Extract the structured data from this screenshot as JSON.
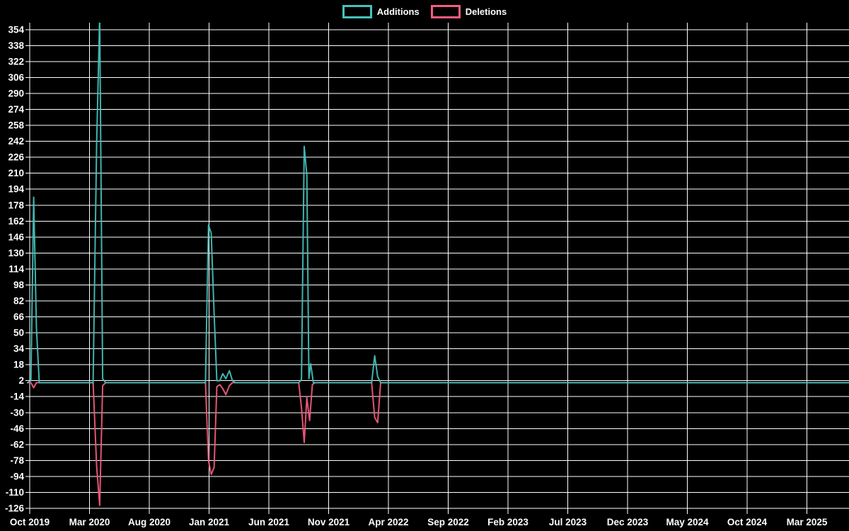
{
  "chart_data": {
    "type": "line",
    "title": "",
    "background": "#000000",
    "grid": true,
    "legend": {
      "position": "top-center",
      "items": [
        "Additions",
        "Deletions"
      ]
    },
    "x_axis": {
      "label": "",
      "tick_labels": [
        "Oct 2019",
        "Mar 2020",
        "Aug 2020",
        "Jan 2021",
        "Jun 2021",
        "Nov 2021",
        "Apr 2022",
        "Sep 2022",
        "Feb 2023",
        "Jul 2023",
        "Dec 2023",
        "May 2024",
        "Oct 2024",
        "Mar 2025"
      ],
      "months_between_ticks": 5,
      "x_unit": "months since Oct 2019",
      "data_start_month": -0.18,
      "data_end_month": 68.5
    },
    "y_axis": {
      "label": "",
      "tick_min": -126,
      "tick_max": 354,
      "tick_step": 16,
      "range_min": -126,
      "range_max": 361
    },
    "series": [
      {
        "name": "Additions",
        "color": "#46c2bd",
        "points": [
          [
            -0.18,
            0
          ],
          [
            0.1,
            2
          ],
          [
            0.33,
            186
          ],
          [
            0.56,
            55
          ],
          [
            0.8,
            0
          ],
          [
            5.3,
            0
          ],
          [
            5.6,
            240
          ],
          [
            5.85,
            368
          ],
          [
            6.1,
            4
          ],
          [
            6.35,
            0
          ],
          [
            14.7,
            0
          ],
          [
            14.95,
            158
          ],
          [
            15.18,
            150
          ],
          [
            15.42,
            70
          ],
          [
            15.65,
            2
          ],
          [
            15.9,
            2
          ],
          [
            16.15,
            9
          ],
          [
            16.4,
            4
          ],
          [
            16.7,
            12
          ],
          [
            16.95,
            2
          ],
          [
            17.2,
            0
          ],
          [
            22.5,
            0
          ],
          [
            22.73,
            3
          ],
          [
            22.96,
            237
          ],
          [
            23.18,
            208
          ],
          [
            23.35,
            4
          ],
          [
            23.5,
            19
          ],
          [
            23.72,
            0
          ],
          [
            28.6,
            0
          ],
          [
            28.85,
            27
          ],
          [
            29.1,
            6
          ],
          [
            29.35,
            0
          ],
          [
            68.5,
            0
          ]
        ]
      },
      {
        "name": "Deletions",
        "color": "#f75c7f",
        "points": [
          [
            -0.18,
            0
          ],
          [
            0.1,
            0
          ],
          [
            0.33,
            -5
          ],
          [
            0.56,
            0
          ],
          [
            5.3,
            0
          ],
          [
            5.6,
            -84
          ],
          [
            5.85,
            -123
          ],
          [
            6.1,
            -3
          ],
          [
            6.35,
            0
          ],
          [
            14.7,
            0
          ],
          [
            14.95,
            -78
          ],
          [
            15.18,
            -92
          ],
          [
            15.42,
            -85
          ],
          [
            15.65,
            -4
          ],
          [
            15.9,
            -2
          ],
          [
            16.15,
            -6
          ],
          [
            16.4,
            -12
          ],
          [
            16.7,
            -3
          ],
          [
            16.95,
            0
          ],
          [
            22.5,
            0
          ],
          [
            22.73,
            -25
          ],
          [
            22.96,
            -60
          ],
          [
            23.18,
            -15
          ],
          [
            23.41,
            -38
          ],
          [
            23.64,
            -2
          ],
          [
            23.85,
            0
          ],
          [
            28.6,
            0
          ],
          [
            28.85,
            -35
          ],
          [
            29.1,
            -40
          ],
          [
            29.35,
            0
          ],
          [
            68.5,
            0
          ]
        ]
      }
    ]
  }
}
